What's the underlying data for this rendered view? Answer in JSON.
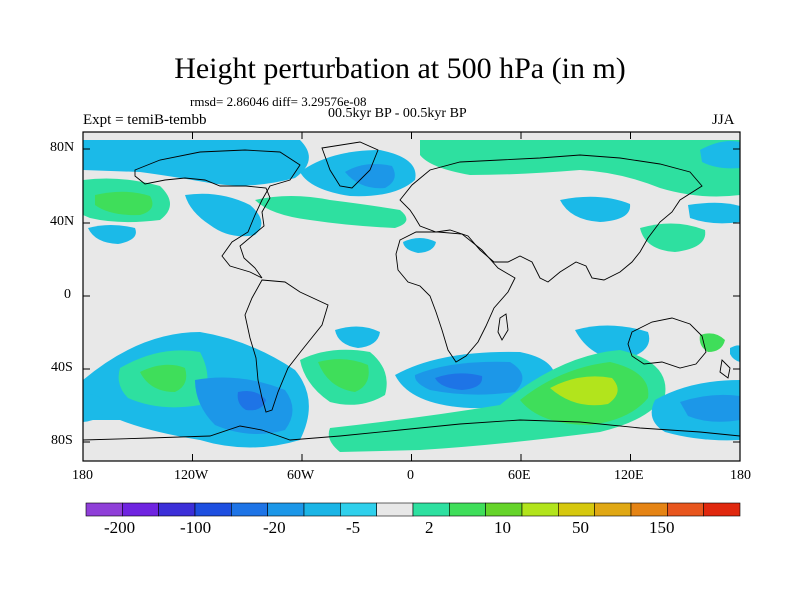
{
  "title": "Height perturbation at 500 hPa (in m)",
  "stats": "rmsd= 2.86046 diff= 3.29576e-08",
  "period": "00.5kyr BP - 00.5kyr BP",
  "experiment": "Expt = temiB-tembb",
  "season": "JJA",
  "lat_labels": [
    "80N",
    "40N",
    "0",
    "40S",
    "80S"
  ],
  "lon_labels": [
    "180",
    "120W",
    "60W",
    "0",
    "60E",
    "120E",
    "180"
  ],
  "colorbar": {
    "labels": [
      "-200",
      "-100",
      "-20",
      "-5",
      "2",
      "10",
      "50",
      "150"
    ],
    "colors": [
      "#8f3fd8",
      "#6f24e0",
      "#3c2fd8",
      "#1e4fe0",
      "#1e74e6",
      "#1c97e8",
      "#1bb5e6",
      "#2fd0ec",
      "#e8e8e8",
      "#2ee0a0",
      "#3fde5a",
      "#66d42a",
      "#b2e41c",
      "#d6c80e",
      "#e0a814",
      "#e58414",
      "#e8561e",
      "#e0280e"
    ]
  },
  "colors": {
    "ocean_blank": "#e8e8e8",
    "weak_neg": "#1bbae8",
    "mod_neg": "#1c97e8",
    "strong_neg": "#1e74e6",
    "weak_pos": "#2ee0a0",
    "mod_pos": "#3fde5a",
    "strong_pos": "#b2e41c"
  }
}
